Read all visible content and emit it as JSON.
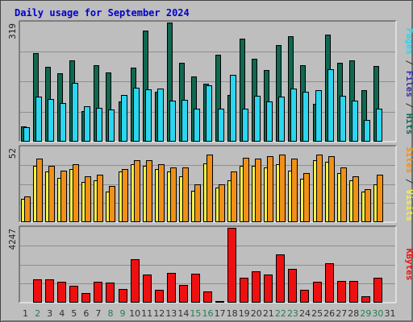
{
  "title": "Daily usage for September 2024",
  "colors": {
    "frame_bg": "#bebebe",
    "plot_bg": "#bebebe",
    "grid": "#8e8e8e",
    "title": "#0000cc",
    "hits": "#106850",
    "files": "#2ad6f0",
    "pages": "#3030a8",
    "visits": "#f8f040",
    "sites": "#f09018",
    "kbytes": "#ee1010",
    "weekend_day": "#208050",
    "weekday": "#303030"
  },
  "chart_data": [
    {
      "type": "bar",
      "name": "hits-files-pages",
      "ylim": [
        0,
        319
      ],
      "y_tick_label": "319",
      "right_label_parts": [
        {
          "text": "Pages",
          "color": "#2ad6f0"
        },
        {
          "text": " / ",
          "color": "#303030"
        },
        {
          "text": "Files",
          "color": "#3030a8"
        },
        {
          "text": " / ",
          "color": "#303030"
        },
        {
          "text": "Hits",
          "color": "#106850"
        }
      ],
      "series": [
        {
          "key": "hits",
          "values": [
            42,
            237,
            200,
            184,
            217,
            82,
            205,
            185,
            107,
            199,
            298,
            133,
            319,
            212,
            175,
            155,
            232,
            126,
            275,
            221,
            191,
            258,
            283,
            205,
            101,
            287,
            212,
            218,
            137,
            203
          ]
        },
        {
          "key": "files",
          "values": [
            39,
            121,
            115,
            103,
            157,
            95,
            91,
            87,
            124,
            144,
            140,
            142,
            110,
            112,
            88,
            151,
            89,
            179,
            89,
            123,
            107,
            121,
            142,
            134,
            137,
            194,
            123,
            109,
            58,
            89
          ]
        },
        {
          "key": "pages",
          "values": [
            2,
            2,
            2,
            2,
            2,
            2,
            2,
            2,
            2,
            2,
            2,
            2,
            2,
            2,
            2,
            2,
            2,
            2,
            2,
            2,
            2,
            2,
            2,
            2,
            2,
            2,
            2,
            2,
            2,
            2
          ]
        }
      ]
    },
    {
      "type": "bar",
      "name": "visits-sites",
      "ylim": [
        0,
        52
      ],
      "y_tick_label": "52",
      "right_label_parts": [
        {
          "text": "Sites",
          "color": "#f09018"
        },
        {
          "text": " / ",
          "color": "#303030"
        },
        {
          "text": "Visits",
          "color": "#f8f040"
        }
      ],
      "series": [
        {
          "key": "visits",
          "values": [
            16,
            39,
            35,
            31,
            37,
            28,
            29,
            21,
            35,
            40,
            39,
            37,
            35,
            32,
            22,
            41,
            24,
            29,
            39,
            39,
            38,
            40,
            36,
            30,
            43,
            42,
            34,
            29,
            21,
            26
          ]
        },
        {
          "key": "sites",
          "values": [
            18,
            44,
            39,
            36,
            40,
            32,
            33,
            25,
            37,
            43,
            43,
            40,
            38,
            38,
            26,
            47,
            26,
            35,
            45,
            44,
            46,
            47,
            44,
            34,
            47,
            46,
            38,
            32,
            23,
            33
          ]
        }
      ]
    },
    {
      "type": "bar",
      "name": "kbytes",
      "ylim": [
        0,
        4247
      ],
      "y_tick_label": "4247",
      "right_label_parts": [
        {
          "text": "KBytes",
          "color": "#ee1010"
        }
      ],
      "series": [
        {
          "key": "kbytes",
          "values": [
            60,
            1340,
            1340,
            1180,
            940,
            560,
            1200,
            1150,
            780,
            2450,
            1600,
            740,
            1680,
            1010,
            1660,
            620,
            90,
            4247,
            1420,
            1800,
            1610,
            2720,
            1900,
            730,
            1190,
            2260,
            1240,
            1250,
            360,
            1400
          ]
        }
      ]
    }
  ],
  "days": [
    "1",
    "2",
    "3",
    "4",
    "5",
    "6",
    "7",
    "8",
    "9",
    "10",
    "11",
    "12",
    "13",
    "14",
    "15",
    "16",
    "17",
    "18",
    "19",
    "20",
    "21",
    "22",
    "23",
    "24",
    "25",
    "26",
    "27",
    "28",
    "29",
    "30",
    "31"
  ],
  "weekend_days": [
    1,
    7,
    8,
    14,
    15,
    21,
    22,
    28,
    29
  ]
}
